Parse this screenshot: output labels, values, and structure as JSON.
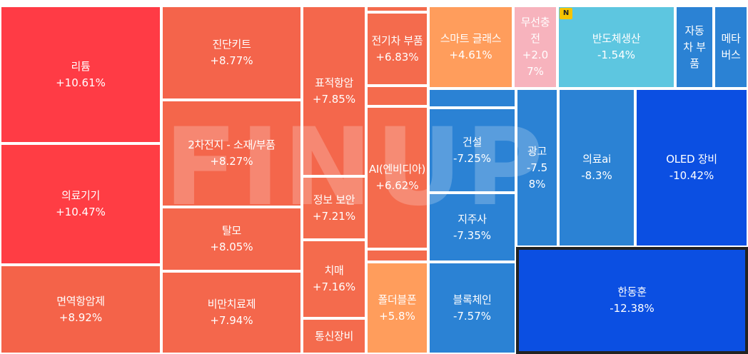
{
  "chart_data": {
    "type": "treemap",
    "title": "",
    "watermark": "FINUP",
    "badge": "N",
    "cells": [
      {
        "name": "리튬",
        "value": "+10.61%",
        "color": "#ff3b45"
      },
      {
        "name": "의료기기",
        "value": "+10.47%",
        "color": "#ff3d44"
      },
      {
        "name": "면역항암제",
        "value": "+8.92%",
        "color": "#f46349"
      },
      {
        "name": "진단키트",
        "value": "+8.77%",
        "color": "#f4644b"
      },
      {
        "name": "2차전지 - 소재/부품",
        "value": "+8.27%",
        "color": "#f4664b"
      },
      {
        "name": "탈모",
        "value": "+8.05%",
        "color": "#f4674c"
      },
      {
        "name": "비만치료제",
        "value": "+7.94%",
        "color": "#f4674c"
      },
      {
        "name": "표적항암",
        "value": "+7.85%",
        "color": "#f4674c"
      },
      {
        "name": "정보 보안",
        "value": "+7.21%",
        "color": "#f46b4d"
      },
      {
        "name": "치매",
        "value": "+7.16%",
        "color": "#f46b4d"
      },
      {
        "name": "통신장비",
        "value": "",
        "color": "#f46b4d"
      },
      {
        "name": "",
        "value": "",
        "color": "#f46b4d"
      },
      {
        "name": "전기차 부품",
        "value": "+6.83%",
        "color": "#f46b4d"
      },
      {
        "name": "",
        "value": "",
        "color": "#f46b4d"
      },
      {
        "name": "AI(엔비디아)",
        "value": "+6.62%",
        "color": "#f46b4d"
      },
      {
        "name": "",
        "value": "",
        "color": "#f46b4d"
      },
      {
        "name": "폴더블폰",
        "value": "+5.8%",
        "color": "#ff9d5c"
      },
      {
        "name": "스마트 글래스",
        "value": "+4.61%",
        "color": "#ff9d5c"
      },
      {
        "name": "무선충전",
        "value": "+2.07%",
        "color": "#f7b3bd"
      },
      {
        "name": "반도체생산",
        "value": "-1.54%",
        "color": "#5dc6e0"
      },
      {
        "name": "자동차 부품",
        "value": "",
        "color": "#2b82d4"
      },
      {
        "name": "메타버스",
        "value": "",
        "color": "#2b82d4"
      },
      {
        "name": "",
        "value": "",
        "color": "#2b82d4"
      },
      {
        "name": "건설",
        "value": "-7.25%",
        "color": "#2b82d4"
      },
      {
        "name": "지주사",
        "value": "-7.35%",
        "color": "#2b82d4"
      },
      {
        "name": "블록체인",
        "value": "-7.57%",
        "color": "#2b82d4"
      },
      {
        "name": "광고",
        "value": "-7.58%",
        "color": "#2b82d4"
      },
      {
        "name": "의료ai",
        "value": "-8.3%",
        "color": "#2b82d4"
      },
      {
        "name": "OLED 장비",
        "value": "-10.42%",
        "color": "#0b4fe2"
      },
      {
        "name": "한동훈",
        "value": "-12.38%",
        "color": "#0b4fe2"
      }
    ]
  }
}
